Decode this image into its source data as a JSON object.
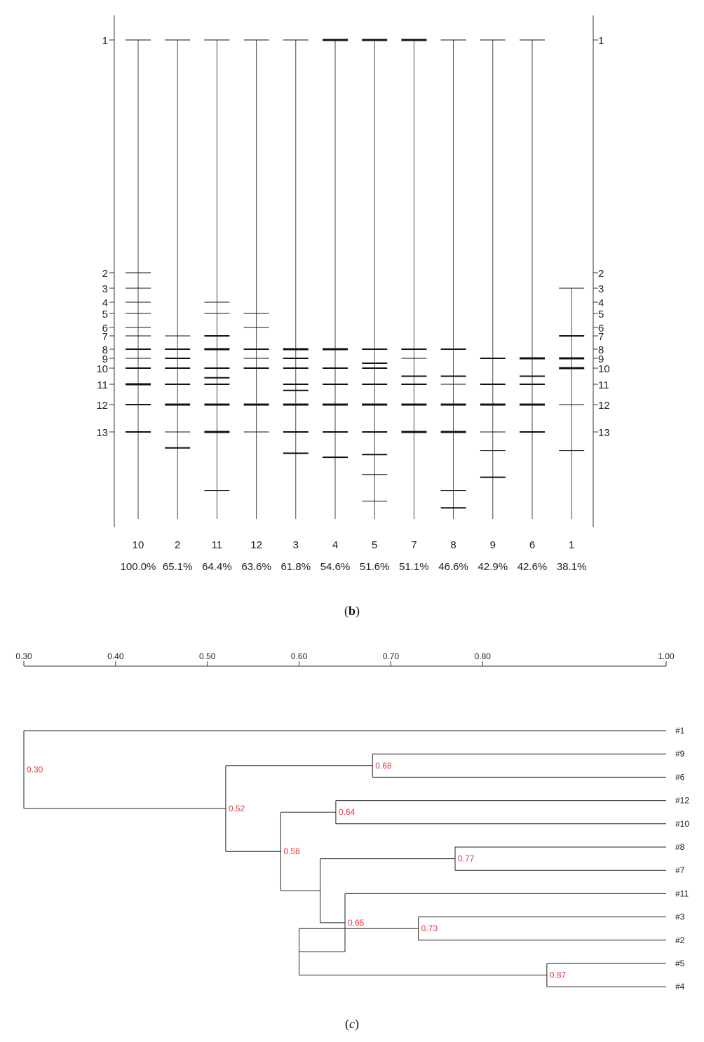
{
  "figure_b": {
    "caption_label": "b",
    "chart_data": {
      "type": "gel-banding",
      "band_labels": [
        "1",
        "2",
        "3",
        "4",
        "5",
        "6",
        "7",
        "8",
        "9",
        "10",
        "11",
        "12",
        "13"
      ],
      "lanes": [
        {
          "id": "10",
          "similarity": "100.0%",
          "bands": [
            [
              1,
              1
            ],
            [
              2,
              1
            ],
            [
              3,
              1
            ],
            [
              4,
              1
            ],
            [
              5,
              1
            ],
            [
              6,
              1
            ],
            [
              7,
              1
            ],
            [
              8,
              2
            ],
            [
              9,
              1
            ],
            [
              10,
              2
            ],
            [
              11,
              3
            ],
            [
              12,
              2
            ],
            [
              13,
              2
            ]
          ],
          "extra_bands": []
        },
        {
          "id": "2",
          "similarity": "65.1%",
          "bands": [
            [
              1,
              1
            ],
            [
              7,
              1
            ],
            [
              8,
              2
            ],
            [
              9,
              2
            ],
            [
              10,
              2
            ],
            [
              11,
              2
            ],
            [
              12,
              3
            ],
            [
              13,
              1
            ]
          ],
          "extra_bands": [
            [
              13.6,
              2
            ]
          ]
        },
        {
          "id": "11",
          "similarity": "64.4%",
          "bands": [
            [
              1,
              1
            ],
            [
              4,
              1
            ],
            [
              5,
              1
            ],
            [
              7,
              2
            ],
            [
              8,
              3
            ],
            [
              10,
              2
            ],
            [
              10.6,
              2
            ],
            [
              11,
              2
            ],
            [
              12,
              3
            ],
            [
              13,
              3
            ]
          ],
          "extra_bands": [
            [
              15.2,
              1
            ]
          ]
        },
        {
          "id": "12",
          "similarity": "63.6%",
          "bands": [
            [
              1,
              1
            ],
            [
              5,
              1
            ],
            [
              6,
              1
            ],
            [
              8,
              2
            ],
            [
              9,
              1
            ],
            [
              10,
              2
            ],
            [
              12,
              3
            ],
            [
              13,
              1
            ]
          ],
          "extra_bands": []
        },
        {
          "id": "3",
          "similarity": "61.8%",
          "bands": [
            [
              1,
              1
            ],
            [
              8,
              3
            ],
            [
              9,
              2
            ],
            [
              10,
              2
            ],
            [
              11,
              2
            ],
            [
              11.3,
              2
            ],
            [
              12,
              3
            ],
            [
              13,
              2
            ]
          ],
          "extra_bands": [
            [
              13.8,
              2
            ]
          ]
        },
        {
          "id": "4",
          "similarity": "54.6%",
          "bands": [
            [
              1,
              3
            ],
            [
              8,
              3
            ],
            [
              10,
              2
            ],
            [
              11,
              2
            ],
            [
              12,
              3
            ],
            [
              13,
              2
            ]
          ],
          "extra_bands": [
            [
              13.95,
              2
            ]
          ]
        },
        {
          "id": "5",
          "similarity": "51.6%",
          "bands": [
            [
              1,
              3
            ],
            [
              8,
              2
            ],
            [
              9.5,
              2
            ],
            [
              10,
              2
            ],
            [
              11,
              2
            ],
            [
              12,
              3
            ],
            [
              13,
              2
            ]
          ],
          "extra_bands": [
            [
              13.85,
              2
            ],
            [
              14.6,
              1
            ],
            [
              15.6,
              1
            ]
          ]
        },
        {
          "id": "7",
          "similarity": "51.1%",
          "bands": [
            [
              1,
              3
            ],
            [
              8,
              2
            ],
            [
              9,
              1
            ],
            [
              10.5,
              2
            ],
            [
              11,
              2
            ],
            [
              12,
              3
            ],
            [
              13,
              3
            ]
          ],
          "extra_bands": []
        },
        {
          "id": "8",
          "similarity": "46.6%",
          "bands": [
            [
              1,
              1
            ],
            [
              8,
              2
            ],
            [
              10.5,
              2
            ],
            [
              11,
              1
            ],
            [
              12,
              3
            ],
            [
              13,
              3
            ]
          ],
          "extra_bands": [
            [
              15.2,
              1
            ],
            [
              15.85,
              2
            ]
          ]
        },
        {
          "id": "9",
          "similarity": "42.9%",
          "bands": [
            [
              1,
              1
            ],
            [
              9,
              2
            ],
            [
              11,
              2
            ],
            [
              12,
              3
            ],
            [
              13,
              1
            ]
          ],
          "extra_bands": [
            [
              13.7,
              1
            ],
            [
              14.7,
              2
            ]
          ]
        },
        {
          "id": "6",
          "similarity": "42.6%",
          "bands": [
            [
              1,
              1
            ],
            [
              9,
              3
            ],
            [
              10.5,
              2
            ],
            [
              11,
              2
            ],
            [
              12,
              3
            ],
            [
              13,
              2
            ]
          ],
          "extra_bands": []
        },
        {
          "id": "1",
          "similarity": "38.1%",
          "bands": [
            [
              3,
              1
            ],
            [
              7,
              2
            ],
            [
              9,
              3
            ],
            [
              10,
              3
            ],
            [
              12,
              1
            ]
          ],
          "extra_bands": [
            [
              13.7,
              1
            ]
          ]
        }
      ]
    }
  },
  "figure_c": {
    "caption_label": "c",
    "chart_data": {
      "type": "dendrogram",
      "axis_ticks": [
        "0.30",
        "0.40",
        "0.50",
        "0.60",
        "0.70",
        "0.80",
        "1.00"
      ],
      "axis_range": [
        0.3,
        1.0
      ],
      "leaves": [
        "#1",
        "#9",
        "#6",
        "#12",
        "#10",
        "#8",
        "#7",
        "#11",
        "#3",
        "#2",
        "#5",
        "#4"
      ],
      "merges": [
        {
          "label": "0.87",
          "similarity": 0.87,
          "children": [
            "#5",
            "#4"
          ]
        },
        {
          "label": "0.77",
          "similarity": 0.77,
          "children": [
            "#8",
            "#7"
          ]
        },
        {
          "label": "0.73",
          "similarity": 0.73,
          "children": [
            "#3",
            "#2"
          ]
        },
        {
          "label": "0.68",
          "similarity": 0.68,
          "children": [
            "#9",
            "#6"
          ]
        },
        {
          "label": "0.65",
          "similarity": 0.65,
          "children": [
            "#11",
            "(#3,#2)+(#5,#4)"
          ]
        },
        {
          "label": "0.64",
          "similarity": 0.64,
          "children": [
            "#12",
            "#10"
          ]
        },
        {
          "label": "0.58",
          "similarity": 0.58,
          "children": [
            "(#12,#10)",
            "(#8,#7)+(#11,...)"
          ]
        },
        {
          "label": "0.52",
          "similarity": 0.52,
          "children": [
            "(#9,#6)",
            "(#12,...)"
          ]
        },
        {
          "label": "0.30",
          "similarity": 0.3,
          "children": [
            "#1",
            "(#9,...)"
          ]
        }
      ]
    }
  }
}
